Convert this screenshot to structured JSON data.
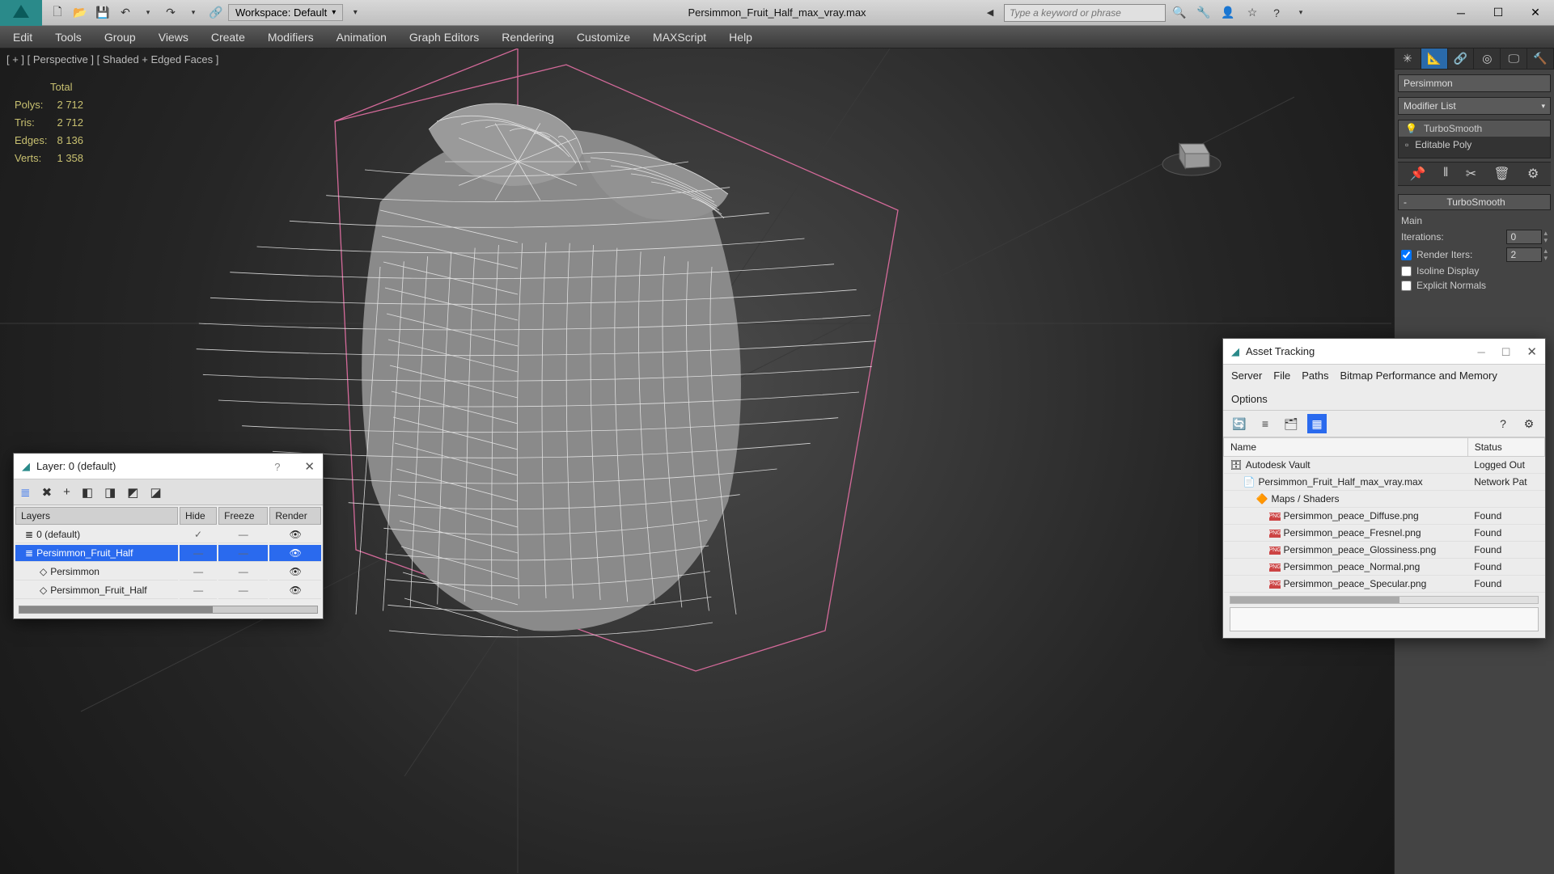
{
  "titlebar": {
    "workspace_label": "Workspace: Default",
    "document": "Persimmon_Fruit_Half_max_vray.max",
    "search_placeholder": "Type a keyword or phrase"
  },
  "menubar": [
    "Edit",
    "Tools",
    "Group",
    "Views",
    "Create",
    "Modifiers",
    "Animation",
    "Graph Editors",
    "Rendering",
    "Customize",
    "MAXScript",
    "Help"
  ],
  "viewport": {
    "label": "[ + ] [ Perspective ] [ Shaded + Edged Faces ]",
    "stats_title": "Total",
    "stats": [
      {
        "k": "Polys:",
        "v": "2 712"
      },
      {
        "k": "Tris:",
        "v": "2 712"
      },
      {
        "k": "Edges:",
        "v": "8 136"
      },
      {
        "k": "Verts:",
        "v": "1 358"
      }
    ],
    "bbox_color": "#d46a9a",
    "wire_color": "#e8e8e8",
    "shade_color": "#7a7a7a"
  },
  "cmdpanel": {
    "object_name": "Persimmon",
    "modlist_label": "Modifier List",
    "stack": [
      {
        "label": "TurboSmooth",
        "icon": "💡"
      },
      {
        "label": "Editable Poly",
        "icon": "▫"
      }
    ],
    "section_title": "TurboSmooth",
    "main_label": "Main",
    "iterations_label": "Iterations:",
    "iterations_value": "0",
    "render_iters_label": "Render Iters:",
    "render_iters_value": "2",
    "isoline_label": "Isoline Display",
    "explicit_label": "Explicit Normals"
  },
  "layer_dialog": {
    "title": "Layer: 0 (default)",
    "help": "?",
    "cols": [
      "Layers",
      "Hide",
      "Freeze",
      "Render"
    ],
    "rows": [
      {
        "name": "0 (default)",
        "indent": 0,
        "sel": false,
        "hide": "✓",
        "freeze": "",
        "render": "👁"
      },
      {
        "name": "Persimmon_Fruit_Half",
        "indent": 0,
        "sel": true,
        "hide": "",
        "freeze": "",
        "render": "👁"
      },
      {
        "name": "Persimmon",
        "indent": 1,
        "sel": false,
        "hide": "",
        "freeze": "",
        "render": "👁"
      },
      {
        "name": "Persimmon_Fruit_Half",
        "indent": 1,
        "sel": false,
        "hide": "",
        "freeze": "",
        "render": "👁"
      }
    ]
  },
  "asset_dialog": {
    "title": "Asset Tracking",
    "menu": [
      "Server",
      "File",
      "Paths",
      "Bitmap Performance and Memory",
      "Options"
    ],
    "cols": [
      "Name",
      "Status"
    ],
    "rows": [
      {
        "name": "Autodesk Vault",
        "status": "Logged Out",
        "icon": "🗄",
        "indent": 0
      },
      {
        "name": "Persimmon_Fruit_Half_max_vray.max",
        "status": "Network Pat",
        "icon": "📄",
        "indent": 1
      },
      {
        "name": "Maps / Shaders",
        "status": "",
        "icon": "🔶",
        "indent": 2
      },
      {
        "name": "Persimmon_peace_Diffuse.png",
        "status": "Found",
        "icon": "PNG",
        "indent": 3
      },
      {
        "name": "Persimmon_peace_Fresnel.png",
        "status": "Found",
        "icon": "PNG",
        "indent": 3
      },
      {
        "name": "Persimmon_peace_Glossiness.png",
        "status": "Found",
        "icon": "PNG",
        "indent": 3
      },
      {
        "name": "Persimmon_peace_Normal.png",
        "status": "Found",
        "icon": "PNG",
        "indent": 3
      },
      {
        "name": "Persimmon_peace_Specular.png",
        "status": "Found",
        "icon": "PNG",
        "indent": 3
      }
    ]
  }
}
